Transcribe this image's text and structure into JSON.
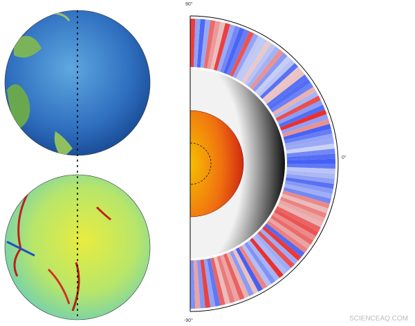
{
  "labels": {
    "top": "90°",
    "middle": "0°",
    "bottom": "-90°"
  },
  "watermark": "SCIENCEAQ.COM"
}
